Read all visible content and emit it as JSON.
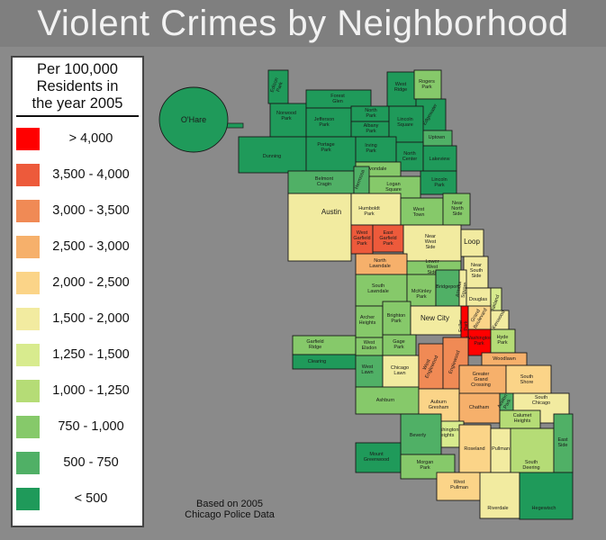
{
  "title": "Violent Crimes by Neighborhood",
  "legend": {
    "heading": [
      "Per 100,000",
      "Residents in",
      "the year 2005"
    ],
    "items": [
      {
        "label": "> 4,000",
        "color": "#ff0000"
      },
      {
        "label": "3,500 - 4,000",
        "color": "#ed5a3b"
      },
      {
        "label": "3,000 - 3,500",
        "color": "#f08a55"
      },
      {
        "label": "2,500 - 3,000",
        "color": "#f6b06b"
      },
      {
        "label": "2,000 - 2,500",
        "color": "#fbd488"
      },
      {
        "label": "1,500 - 2,000",
        "color": "#f2eba0"
      },
      {
        "label": "1,250 - 1,500",
        "color": "#d8eb8e"
      },
      {
        "label": "1,000 - 1,250",
        "color": "#b5dc76"
      },
      {
        "label": "750 - 1,000",
        "color": "#86c96a"
      },
      {
        "label": "500 - 750",
        "color": "#50b066"
      },
      {
        "label": "< 500",
        "color": "#1f9a5a"
      }
    ]
  },
  "note": [
    "Based on 2005",
    "Chicago Police Data"
  ],
  "regions": [
    {
      "label": "O'Hare",
      "bracket": 10
    },
    {
      "label": "Edison Park",
      "bracket": 10
    },
    {
      "label": "Norwood Park",
      "bracket": 10
    },
    {
      "label": "Forest Glen",
      "bracket": 10
    },
    {
      "label": "Jefferson Park",
      "bracket": 10
    },
    {
      "label": "North Park",
      "bracket": 10
    },
    {
      "label": "Albany Park",
      "bracket": 10
    },
    {
      "label": "West Ridge",
      "bracket": 10
    },
    {
      "label": "Rogers Park",
      "bracket": 8
    },
    {
      "label": "Edgewater",
      "bracket": 10
    },
    {
      "label": "Lincoln Square",
      "bracket": 10
    },
    {
      "label": "Uptown",
      "bracket": 9
    },
    {
      "label": "Dunning",
      "bracket": 10
    },
    {
      "label": "Portage Park",
      "bracket": 10
    },
    {
      "label": "Irving Park",
      "bracket": 10
    },
    {
      "label": "North Center",
      "bracket": 10
    },
    {
      "label": "Lakeview",
      "bracket": 10
    },
    {
      "label": "Avondale",
      "bracket": 8
    },
    {
      "label": "Belmont Cragin",
      "bracket": 9
    },
    {
      "label": "Hermosa",
      "bracket": 9
    },
    {
      "label": "Logan Square",
      "bracket": 8
    },
    {
      "label": "Lincoln Park",
      "bracket": 10
    },
    {
      "label": "Austin",
      "bracket": 5
    },
    {
      "label": "Humboldt Park",
      "bracket": 5
    },
    {
      "label": "West Town",
      "bracket": 8
    },
    {
      "label": "Near North Side",
      "bracket": 8
    },
    {
      "label": "West Garfield Park",
      "bracket": 1
    },
    {
      "label": "East Garfield Park",
      "bracket": 1
    },
    {
      "label": "Near West Side",
      "bracket": 5
    },
    {
      "label": "Loop",
      "bracket": 5
    },
    {
      "label": "North Lawndale",
      "bracket": 3
    },
    {
      "label": "Lower West Side",
      "bracket": 8
    },
    {
      "label": "Near South Side",
      "bracket": 5
    },
    {
      "label": "South Lawndale",
      "bracket": 8
    },
    {
      "label": "McKinley Park",
      "bracket": 8
    },
    {
      "label": "Bridgeport",
      "bracket": 9
    },
    {
      "label": "Armour Square",
      "bracket": 5
    },
    {
      "label": "Douglas",
      "bracket": 5
    },
    {
      "label": "Oakland",
      "bracket": 6
    },
    {
      "label": "Archer Heights",
      "bracket": 8
    },
    {
      "label": "Brighton Park",
      "bracket": 8
    },
    {
      "label": "New City",
      "bracket": 5
    },
    {
      "label": "Fuller Park",
      "bracket": 0
    },
    {
      "label": "Grand Boulevard",
      "bracket": 4
    },
    {
      "label": "Kenwood",
      "bracket": 5
    },
    {
      "label": "Washington Park",
      "bracket": 0
    },
    {
      "label": "Hyde Park",
      "bracket": 7
    },
    {
      "label": "Garfield Ridge",
      "bracket": 8
    },
    {
      "label": "Clearing",
      "bracket": 10
    },
    {
      "label": "West Elsdon",
      "bracket": 8
    },
    {
      "label": "Gage Park",
      "bracket": 8
    },
    {
      "label": "West Lawn",
      "bracket": 9
    },
    {
      "label": "Chicago Lawn",
      "bracket": 5
    },
    {
      "label": "West Englewood",
      "bracket": 2
    },
    {
      "label": "Englewood",
      "bracket": 2
    },
    {
      "label": "Woodlawn",
      "bracket": 3
    },
    {
      "label": "Greater Grand Crossing",
      "bracket": 3
    },
    {
      "label": "South Shore",
      "bracket": 4
    },
    {
      "label": "Ashburn",
      "bracket": 8
    },
    {
      "label": "Auburn Gresham",
      "bracket": 4
    },
    {
      "label": "Chatham",
      "bracket": 3
    },
    {
      "label": "Avalon Park",
      "bracket": 9
    },
    {
      "label": "South Chicago",
      "bracket": 5
    },
    {
      "label": "Calumet Heights",
      "bracket": 7
    },
    {
      "label": "Washington Heights",
      "bracket": 6
    },
    {
      "label": "Beverly",
      "bracket": 9
    },
    {
      "label": "Mount Greenwood",
      "bracket": 10
    },
    {
      "label": "Morgan Park",
      "bracket": 8
    },
    {
      "label": "Roseland",
      "bracket": 4
    },
    {
      "label": "Pullman",
      "bracket": 5
    },
    {
      "label": "South Deering",
      "bracket": 7
    },
    {
      "label": "East Side",
      "bracket": 9
    },
    {
      "label": "West Pullman",
      "bracket": 4
    },
    {
      "label": "Riverdale",
      "bracket": 5
    },
    {
      "label": "Hegewisch",
      "bracket": 10
    }
  ]
}
